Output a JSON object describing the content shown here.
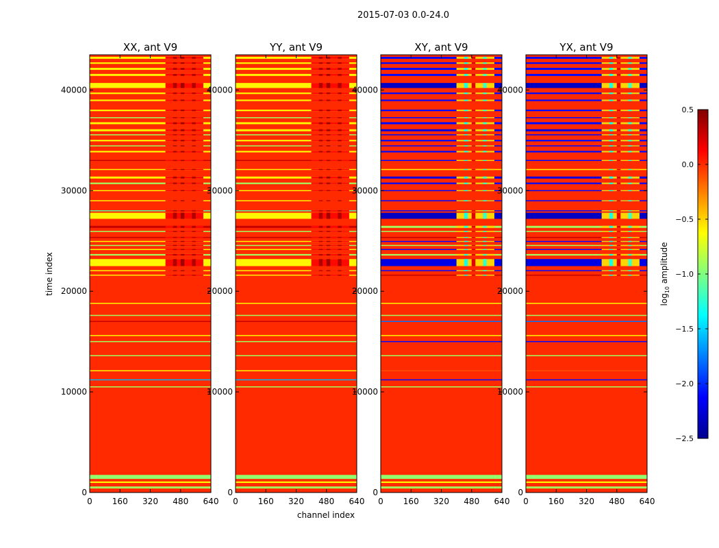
{
  "chart_data": {
    "type": "heatmap",
    "title": "2015-07-03 0.0-24.0",
    "xlabel": "channel index",
    "ylabel": "time index",
    "xlim": [
      0,
      640
    ],
    "ylim": [
      0,
      43500
    ],
    "xticks": [
      "0",
      "160",
      "320",
      "480",
      "640"
    ],
    "yticks": [
      "0",
      "10000",
      "20000",
      "30000",
      "40000"
    ],
    "background_value": 0.0,
    "panels": [
      {
        "title": "XX, ant V9",
        "kind": "parallel"
      },
      {
        "title": "YY, ant V9",
        "kind": "parallel"
      },
      {
        "title": "XY, ant V9",
        "kind": "cross"
      },
      {
        "title": "YX, ant V9",
        "kind": "cross"
      }
    ],
    "bands": [
      {
        "t": [
          400,
          600
        ],
        "parallel": -0.9,
        "cross": -0.9
      },
      {
        "t": [
          950,
          1100
        ],
        "parallel": -0.6,
        "cross": -0.6
      },
      {
        "t": [
          1350,
          1750
        ],
        "parallel": -0.95,
        "cross": -0.95
      },
      {
        "t": [
          10450,
          10550
        ],
        "parallel": -0.9,
        "cross": -0.9
      },
      {
        "t": [
          11150,
          11250
        ],
        "parallel": -1.6,
        "cross": -2.1
      },
      {
        "t": [
          12050,
          12150
        ],
        "parallel": -0.6,
        "cross": -0.1
      },
      {
        "t": [
          13550,
          13650
        ],
        "parallel": -0.9,
        "cross": -0.9
      },
      {
        "t": [
          14950,
          15050
        ],
        "parallel": -0.9,
        "cross": -2.1
      },
      {
        "t": [
          15550,
          15650
        ],
        "parallel": -0.6,
        "cross": -0.6
      },
      {
        "t": [
          16950,
          17050
        ],
        "parallel": 0.3,
        "cross": -1.8
      },
      {
        "t": [
          17550,
          17650
        ],
        "parallel": -0.9,
        "cross": -0.9
      },
      {
        "t": [
          18750,
          18850
        ],
        "parallel": -0.6,
        "cross": -0.6
      },
      {
        "t": [
          21550,
          21650
        ],
        "parallel": -0.6,
        "cross": 0.3
      },
      {
        "t": [
          22000,
          22100
        ],
        "parallel": -0.6,
        "cross": -2.1
      },
      {
        "t": [
          22500,
          23200
        ],
        "parallel": -0.6,
        "cross": -2.2
      },
      {
        "t": [
          23550,
          23700
        ],
        "parallel": -0.9,
        "cross": -0.9
      },
      {
        "t": [
          24100,
          24200
        ],
        "parallel": -0.6,
        "cross": -2.1
      },
      {
        "t": [
          24500,
          24600
        ],
        "parallel": -0.9,
        "cross": -0.9
      },
      {
        "t": [
          24900,
          25000
        ],
        "parallel": -0.6,
        "cross": -2.1
      },
      {
        "t": [
          25300,
          25400
        ],
        "parallel": 0.3,
        "cross": 0.3
      },
      {
        "t": [
          25900,
          26000
        ],
        "parallel": -0.9,
        "cross": -0.9
      },
      {
        "t": [
          26300,
          26500
        ],
        "parallel": 0.3,
        "cross": -0.9
      },
      {
        "t": [
          27200,
          27800
        ],
        "parallel": -0.6,
        "cross": -2.3
      },
      {
        "t": [
          27950,
          28050
        ],
        "parallel": -1.1,
        "cross": -2.1
      },
      {
        "t": [
          28950,
          29050
        ],
        "parallel": -0.6,
        "cross": -2.1
      },
      {
        "t": [
          29950,
          30050
        ],
        "parallel": -0.6,
        "cross": -2.1
      },
      {
        "t": [
          30650,
          30800
        ],
        "parallel": -0.9,
        "cross": -2.1
      },
      {
        "t": [
          31200,
          31400
        ],
        "parallel": -0.6,
        "cross": -2.2
      },
      {
        "t": [
          32050,
          32150
        ],
        "parallel": -0.6,
        "cross": -0.6
      },
      {
        "t": [
          32950,
          33050
        ],
        "parallel": 0.3,
        "cross": -2.1
      },
      {
        "t": [
          33800,
          33950
        ],
        "parallel": -0.6,
        "cross": -2.1
      },
      {
        "t": [
          34400,
          34500
        ],
        "parallel": -0.9,
        "cross": -2.1
      },
      {
        "t": [
          34900,
          35050
        ],
        "parallel": -0.6,
        "cross": -2.1
      },
      {
        "t": [
          35500,
          35600
        ],
        "parallel": -0.9,
        "cross": -2.1
      },
      {
        "t": [
          35900,
          36100
        ],
        "parallel": -0.6,
        "cross": -2.2
      },
      {
        "t": [
          36600,
          36800
        ],
        "parallel": -0.6,
        "cross": -2.1
      },
      {
        "t": [
          37200,
          37300
        ],
        "parallel": -0.9,
        "cross": -2.1
      },
      {
        "t": [
          37900,
          38050
        ],
        "parallel": -0.6,
        "cross": -2.1
      },
      {
        "t": [
          38900,
          39050
        ],
        "parallel": -0.6,
        "cross": -2.1
      },
      {
        "t": [
          39600,
          39750
        ],
        "parallel": -0.6,
        "cross": -2.1
      },
      {
        "t": [
          40200,
          40700
        ],
        "parallel": -0.6,
        "cross": -2.3
      },
      {
        "t": [
          41400,
          41600
        ],
        "parallel": -0.6,
        "cross": -2.1
      },
      {
        "t": [
          42000,
          42200
        ],
        "parallel": -0.6,
        "cross": -2.1
      },
      {
        "t": [
          42600,
          42750
        ],
        "parallel": -0.6,
        "cross": -2.1
      },
      {
        "t": [
          43100,
          43300
        ],
        "parallel": -0.6,
        "cross": -2.1
      }
    ],
    "rfi_patches": [
      {
        "ch": [
          400,
          600
        ],
        "t": [
          21500,
          43500
        ],
        "parallel": 0.1,
        "cross": -0.5
      },
      {
        "ch": [
          440,
          460
        ],
        "t": [
          21500,
          43500
        ],
        "parallel": 0.35,
        "cross": -1.3
      },
      {
        "ch": [
          480,
          500
        ],
        "t": [
          21500,
          43500
        ],
        "parallel": 0.4,
        "cross": 0.2
      },
      {
        "ch": [
          540,
          560
        ],
        "t": [
          21500,
          43500
        ],
        "parallel": 0.35,
        "cross": -1.2
      }
    ],
    "colorbar": {
      "label_main": "log",
      "label_sub": "10",
      "label_rest": " amplitude",
      "range": [
        -2.5,
        0.5
      ],
      "ticks": [
        "0.5",
        "0.0",
        "−0.5",
        "−1.0",
        "−1.5",
        "−2.0",
        "−2.5"
      ],
      "tick_values": [
        0.5,
        0.0,
        -0.5,
        -1.0,
        -1.5,
        -2.0,
        -2.5
      ],
      "colormap": "jet"
    }
  }
}
